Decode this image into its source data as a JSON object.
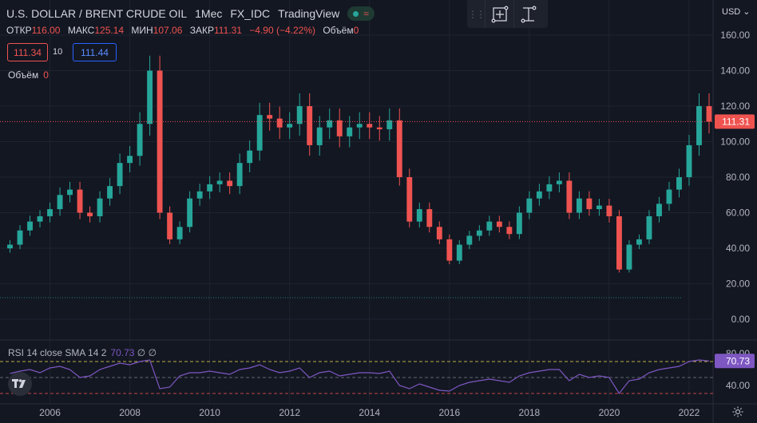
{
  "header": {
    "symbol": "U.S. DOLLAR / BRENT CRUDE OIL",
    "interval": "1Mec",
    "exchange": "FX_IDC",
    "source": "TradingView"
  },
  "ohlc": {
    "open_label": "ОТКР",
    "open": "116.00",
    "high_label": "МАКС",
    "high": "125.14",
    "low_label": "МИН",
    "low": "107.06",
    "close_label": "ЗАКР",
    "close": "111.31",
    "change": "−4.90 (−4.22%)",
    "volume_label": "Объём",
    "volume": "0"
  },
  "trade": {
    "sell": "111.34",
    "spread": "10",
    "buy": "111.44"
  },
  "volume_legend": {
    "label": "Объём",
    "value": "0"
  },
  "currency": "USD",
  "price_axis": {
    "ticks": [
      "160.00",
      "140.00",
      "120.00",
      "100.00",
      "80.00",
      "60.00",
      "40.00",
      "20.00",
      "0.00"
    ],
    "last_price": "111.31"
  },
  "rsi": {
    "label": "RSI 14 close SMA 14 2",
    "value": "70.73",
    "extra": "∅ ∅",
    "ticks": [
      "80.00",
      "40.00"
    ],
    "last_value": "70.73"
  },
  "time_axis": [
    "2006",
    "2008",
    "2010",
    "2012",
    "2014",
    "2016",
    "2018",
    "2020",
    "2022"
  ],
  "colors": {
    "up": "#26a69a",
    "down": "#ef5350",
    "rsi": "#7e57c2",
    "bg": "#131722"
  },
  "chart_data": {
    "type": "candlestick",
    "x": [
      2005.0,
      2005.25,
      2005.5,
      2005.75,
      2006.0,
      2006.25,
      2006.5,
      2006.75,
      2007.0,
      2007.25,
      2007.5,
      2007.75,
      2008.0,
      2008.25,
      2008.5,
      2008.75,
      2009.0,
      2009.25,
      2009.5,
      2009.75,
      2010.0,
      2010.25,
      2010.5,
      2010.75,
      2011.0,
      2011.25,
      2011.5,
      2011.75,
      2012.0,
      2012.25,
      2012.5,
      2012.75,
      2013.0,
      2013.25,
      2013.5,
      2013.75,
      2014.0,
      2014.25,
      2014.5,
      2014.75,
      2015.0,
      2015.25,
      2015.5,
      2015.75,
      2016.0,
      2016.25,
      2016.5,
      2016.75,
      2017.0,
      2017.25,
      2017.5,
      2017.75,
      2018.0,
      2018.25,
      2018.5,
      2018.75,
      2019.0,
      2019.25,
      2019.5,
      2019.75,
      2020.0,
      2020.25,
      2020.5,
      2020.75,
      2021.0,
      2021.25,
      2021.5,
      2021.75,
      2022.0,
      2022.25,
      2022.5
    ],
    "values": [
      42,
      50,
      55,
      58,
      62,
      70,
      73,
      60,
      58,
      68,
      75,
      88,
      92,
      110,
      140,
      60,
      45,
      52,
      68,
      72,
      76,
      78,
      75,
      88,
      95,
      115,
      113,
      108,
      110,
      120,
      98,
      108,
      112,
      103,
      108,
      110,
      108,
      107,
      112,
      80,
      55,
      62,
      52,
      45,
      33,
      42,
      47,
      50,
      55,
      52,
      48,
      60,
      68,
      72,
      76,
      78,
      60,
      68,
      62,
      64,
      58,
      28,
      42,
      45,
      58,
      65,
      73,
      80,
      98,
      120,
      111.31
    ],
    "ylim": [
      0,
      160
    ],
    "xlim": [
      2004.75,
      2022.6
    ],
    "rsi": {
      "values": [
        55,
        58,
        60,
        56,
        62,
        64,
        60,
        50,
        52,
        60,
        64,
        68,
        66,
        70,
        72,
        36,
        38,
        52,
        56,
        56,
        58,
        56,
        54,
        60,
        62,
        66,
        60,
        56,
        58,
        62,
        50,
        56,
        58,
        52,
        54,
        56,
        56,
        55,
        58,
        40,
        36,
        42,
        38,
        34,
        33,
        40,
        44,
        46,
        48,
        46,
        44,
        52,
        56,
        58,
        60,
        60,
        46,
        54,
        50,
        52,
        50,
        30,
        46,
        48,
        56,
        60,
        62,
        64,
        70,
        72,
        70.73
      ],
      "ylim": [
        25,
        85
      ]
    }
  }
}
